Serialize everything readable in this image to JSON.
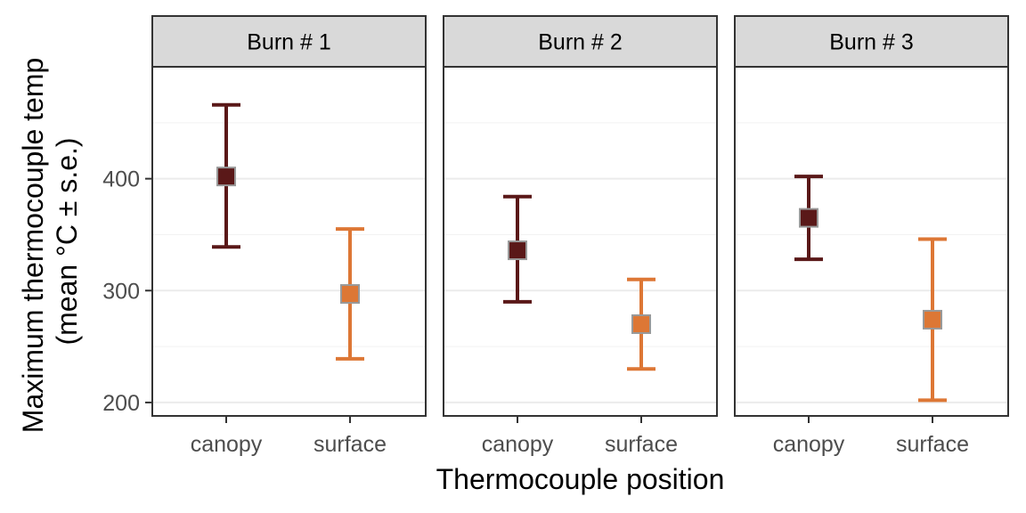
{
  "chart_data": {
    "type": "errorbar",
    "xlabel": "Thermocouple position",
    "ylabel": [
      "Maximum thermocouple temp",
      "(mean °C ± s.e.)"
    ],
    "categories": [
      "canopy",
      "surface"
    ],
    "ylim": [
      188,
      500
    ],
    "yticks": [
      200,
      300,
      400
    ],
    "grid": true,
    "legend": "none",
    "colors": {
      "canopy": "#5a1818",
      "surface": "#dd7735",
      "point_outline": "#999999"
    },
    "panels": [
      {
        "title": "Burn # 1",
        "points": [
          {
            "category": "canopy",
            "mean": 402,
            "lower": 339,
            "upper": 466
          },
          {
            "category": "surface",
            "mean": 297,
            "lower": 239,
            "upper": 355
          }
        ]
      },
      {
        "title": "Burn # 2",
        "points": [
          {
            "category": "canopy",
            "mean": 336,
            "lower": 290,
            "upper": 384
          },
          {
            "category": "surface",
            "mean": 270,
            "lower": 230,
            "upper": 310
          }
        ]
      },
      {
        "title": "Burn # 3",
        "points": [
          {
            "category": "canopy",
            "mean": 365,
            "lower": 328,
            "upper": 402
          },
          {
            "category": "surface",
            "mean": 274,
            "lower": 202,
            "upper": 346
          }
        ]
      }
    ]
  }
}
